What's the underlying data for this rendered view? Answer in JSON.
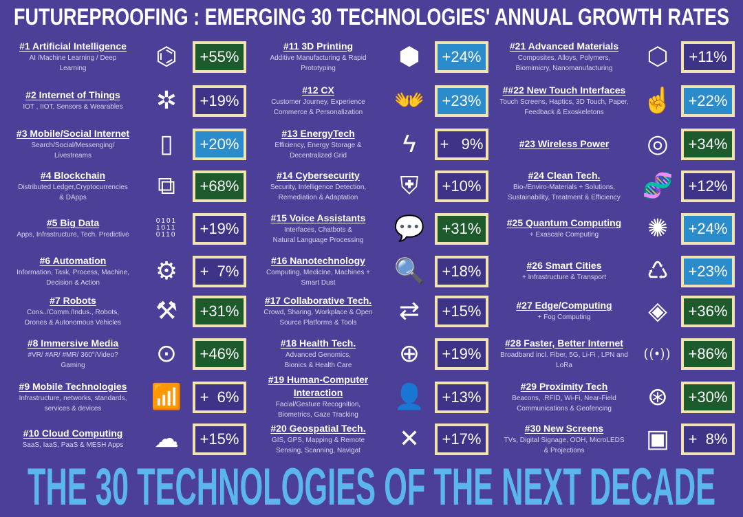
{
  "title": "FUTUREPROOFING : EMERGING 30 TECHNOLOGIES' ANNUAL GROWTH RATES",
  "footer": "THE 30 TECHNOLOGIES OF THE NEXT DECADE",
  "colors": {
    "background": "#4b3f97",
    "green": "#1d5a2c",
    "blue": "#2b8ccc",
    "purple": "#3d3488",
    "border": "#f2e3b2",
    "footer_text": "#5cb6ee"
  },
  "columns": [
    [
      {
        "name": "#1 Artificial Intelligence",
        "desc": [
          "AI /Machine Learning / Deep",
          "Learning"
        ],
        "icon": "brain-chip-icon",
        "glyph": "⌬",
        "growth": "+55%",
        "color": "#1d5a2c"
      },
      {
        "name": "#2 Internet of Things",
        "desc": [
          "IOT , IIOT, Sensors & Wearables"
        ],
        "icon": "network-hub-icon",
        "glyph": "✲",
        "growth": "+19%",
        "color": "#3d3488"
      },
      {
        "name": "#3 Mobile/Social  Internet",
        "desc": [
          "Search/Social/Messenging/",
          "Livestreams"
        ],
        "icon": "smartphone-touch-icon",
        "glyph": "▯",
        "growth": "+20%",
        "color": "#2b8ccc"
      },
      {
        "name": "#4 Blockchain",
        "desc": [
          "Distributed Ledger,Cryptocurrencies",
          "& DApps"
        ],
        "icon": "blocks-icon",
        "glyph": "⧉",
        "growth": "+68%",
        "color": "#1d5a2c"
      },
      {
        "name": "#5 Big Data",
        "desc": [
          "Apps, Infrastructure, Tech. Predictive"
        ],
        "icon": "binary-icon",
        "glyph": "0101\n1011\n0110",
        "growth": "+19%",
        "color": "#3d3488"
      },
      {
        "name": "#6 Automation",
        "desc": [
          "Information, Task, Process, Machine,",
          "Decision & Action"
        ],
        "icon": "gears-icon",
        "glyph": "⚙",
        "growth": "+  7%",
        "color": "#3d3488"
      },
      {
        "name": "#7 Robots",
        "desc": [
          "Cons../Comm./Indus., Robots,",
          "Drones & Autonomous Vehicles"
        ],
        "icon": "robot-arm-icon",
        "glyph": "⚒",
        "growth": "+31%",
        "color": "#1d5a2c"
      },
      {
        "name": "#8 Immersive Media",
        "desc": [
          "#VR/ #AR/ #MR/ 360°/Video?",
          "Gaming"
        ],
        "icon": "vr-headset-icon",
        "glyph": "⊙",
        "growth": "+46%",
        "color": "#1d5a2c"
      },
      {
        "name": "#9 Mobile Technologies",
        "desc": [
          "Infrastructure, networks, standards,",
          "services & devices"
        ],
        "icon": "signal-tower-icon",
        "glyph": "📶",
        "growth": "+  6%",
        "color": "#3d3488"
      },
      {
        "name": "#10 Cloud Computing",
        "desc": [
          "SaaS, IaaS, PaaS  & MESH Apps"
        ],
        "icon": "cloud-download-icon",
        "glyph": "☁",
        "growth": "+15%",
        "color": "#3d3488"
      }
    ],
    [
      {
        "name": "#11 3D Printing",
        "desc": [
          "Additive Manufacturing & Rapid",
          "Prototyping"
        ],
        "icon": "3d-printer-icon",
        "glyph": "⬢",
        "growth": "+24%",
        "color": "#2b8ccc"
      },
      {
        "name": "#12 CX",
        "desc": [
          "Customer Journey, Experience",
          "Commerce & Personalization"
        ],
        "icon": "hands-people-icon",
        "glyph": "👐",
        "growth": "+23%",
        "color": "#2b8ccc"
      },
      {
        "name": "#13 EnergyTech",
        "desc": [
          "Efficiency, Energy Storage &",
          "Decentralized Grid"
        ],
        "icon": "lightning-icon",
        "glyph": "ϟ",
        "growth": "+   9%",
        "color": "#3d3488"
      },
      {
        "name": "#14 Cybersecurity",
        "desc": [
          "Security, Intelligence Detection,",
          "Remediation & Adaptation"
        ],
        "icon": "shield-icon",
        "glyph": "⛨",
        "growth": "+10%",
        "color": "#3d3488"
      },
      {
        "name": "#15 Voice Assistants",
        "desc": [
          "Interfaces, Chatbots &",
          "Natural Language Processing"
        ],
        "icon": "speech-bubble-icon",
        "glyph": "💬",
        "growth": "+31%",
        "color": "#1d5a2c"
      },
      {
        "name": "#16 Nanotechnology",
        "desc": [
          "Computing, Medicine, Machines +",
          "Smart Dust"
        ],
        "icon": "magnifier-icon",
        "glyph": "🔍",
        "growth": "+18%",
        "color": "#3d3488"
      },
      {
        "name": "#17 Collaborative Tech.",
        "desc": [
          "Crowd, Sharing, Workplace  & Open",
          "Source Platforms & Tools"
        ],
        "icon": "people-exchange-icon",
        "glyph": "⇄",
        "growth": "+15%",
        "color": "#3d3488"
      },
      {
        "name": "#18 Health Tech.",
        "desc": [
          "Advanced Genomics,",
          "Bionics & Health Care"
        ],
        "icon": "medical-cross-icon",
        "glyph": "⊕",
        "growth": "+19%",
        "color": "#3d3488"
      },
      {
        "name": "#19 Human-Computer Interaction",
        "desc": [
          "Facial/Gesture  Recognition,",
          "Biometrics, Gaze Tracking"
        ],
        "icon": "face-scan-icon",
        "glyph": "👤",
        "growth": "+13%",
        "color": "#3d3488"
      },
      {
        "name": "#20 Geospatial Tech.",
        "desc": [
          "GIS, GPS, Mapping  & Remote",
          "Sensing, Scanning, Navigat"
        ],
        "icon": "map-satellite-icon",
        "glyph": "✕",
        "growth": "+17%",
        "color": "#3d3488"
      }
    ],
    [
      {
        "name": "#21 Advanced Materials",
        "desc": [
          "Composites, Alloys, Polymers,",
          "Biomimicry, Nanomanufacturing"
        ],
        "icon": "molecule-icon",
        "glyph": "⬡",
        "growth": "+11%",
        "color": "#3d3488"
      },
      {
        "name": "##22  New Touch Interfaces",
        "desc": [
          "Touch Screens, Haptics, 3D Touch, Paper,",
          "Feedback  & Exoskeletons"
        ],
        "icon": "touch-hand-icon",
        "glyph": "☝",
        "growth": "+22%",
        "color": "#2b8ccc"
      },
      {
        "name": "#23 Wireless Power",
        "desc": [],
        "icon": "wireless-charge-icon",
        "glyph": "◎",
        "growth": "+34%",
        "color": "#1d5a2c"
      },
      {
        "name": "#24 Clean Tech.",
        "desc": [
          "Bio-/Enviro-Materials + Solutions,",
          "Sustainability, Treatment & Efficiency"
        ],
        "icon": "dna-icon",
        "glyph": "🧬",
        "growth": "+12%",
        "color": "#3d3488"
      },
      {
        "name": "#25 Quantum Computing",
        "desc": [
          "+ Exascale Computing"
        ],
        "icon": "quantum-network-icon",
        "glyph": "✺",
        "growth": "+24%",
        "color": "#2b8ccc"
      },
      {
        "name": "#26 Smart Cities",
        "desc": [
          "+ Infrastructure & Transport"
        ],
        "icon": "city-cycle-icon",
        "glyph": "♺",
        "growth": "+23%",
        "color": "#2b8ccc"
      },
      {
        "name": "#27 Edge/Computing",
        "desc": [
          "+ Fog Computing"
        ],
        "icon": "chip-icon",
        "glyph": "◈",
        "growth": "+36%",
        "color": "#1d5a2c"
      },
      {
        "name": "#28 Faster, Better  Internet",
        "desc": [
          "Broadband incl. Fiber, 5G, Li-Fi , LPN and",
          "LoRa"
        ],
        "icon": "broadcast-icon",
        "glyph": "((•))",
        "growth": "+86%",
        "color": "#1d5a2c"
      },
      {
        "name": "#29 Proximity Tech",
        "desc": [
          "Beacons, .RFID,  Wi-Fi, Near-Field",
          "Communications & Geofencing"
        ],
        "icon": "beacon-icon",
        "glyph": "⊛",
        "growth": "+30%",
        "color": "#1d5a2c"
      },
      {
        "name": "#30 New Screens",
        "desc": [
          "TVs, Digital Signage, OOH, MicroLEDS",
          "& Projections"
        ],
        "icon": "digital-screen-icon",
        "glyph": "▣",
        "growth": "+  8%",
        "color": "#3d3488"
      }
    ]
  ]
}
